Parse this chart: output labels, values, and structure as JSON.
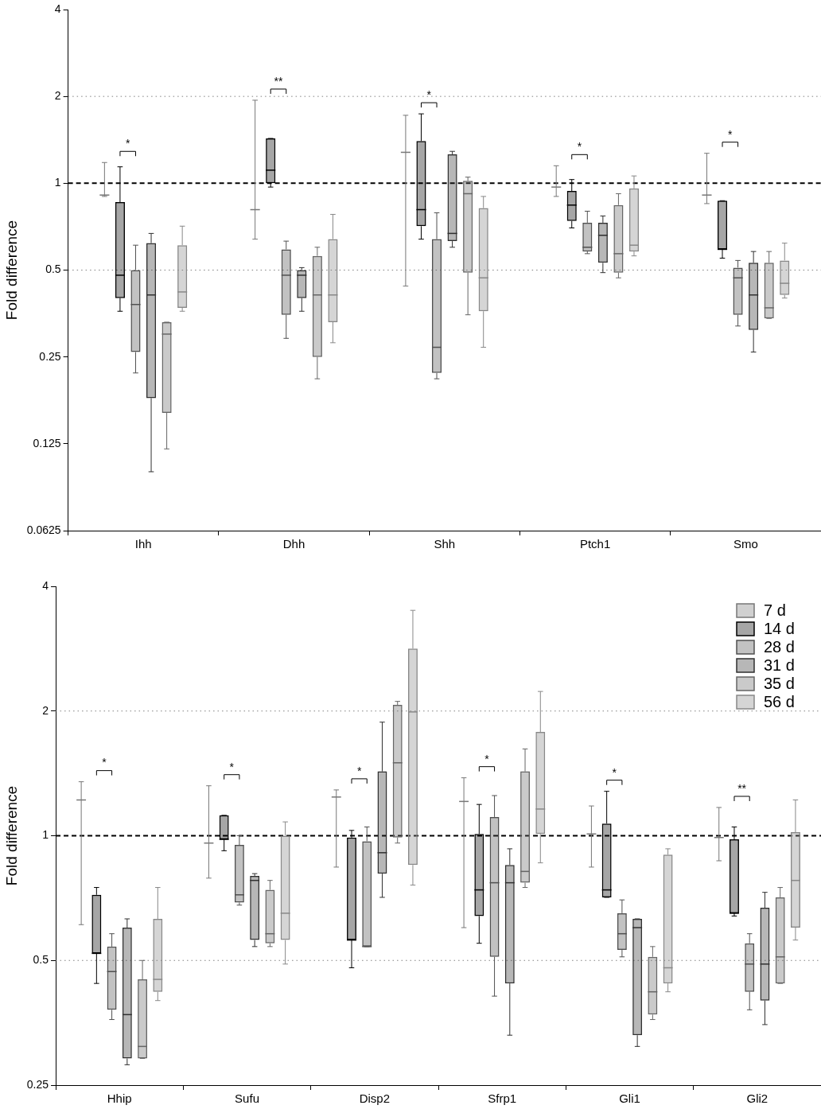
{
  "chart_data": [
    {
      "type": "box",
      "ylabel": "Fold difference",
      "categories": [
        "Ihh",
        "Dhh",
        "Shh",
        "Ptch1",
        "Smo"
      ],
      "log": "y",
      "ylim": [
        0.0625,
        4
      ],
      "yticks": [
        0.0625,
        0.125,
        0.25,
        0.5,
        1,
        2,
        4
      ],
      "ref_lines": [
        {
          "axis": "y",
          "value": 2,
          "line_style": "dotted",
          "color": "#808080"
        },
        {
          "axis": "y",
          "value": 1,
          "line_style": "dashed",
          "color": "#000000"
        },
        {
          "axis": "y",
          "value": 0.5,
          "line_style": "dotted",
          "color": "#808080"
        }
      ],
      "annotations": [
        "*",
        "**",
        "*",
        "*",
        "*"
      ],
      "series": [
        {
          "color": "#777777",
          "boxes": [
            {
              "low": 0.9,
              "q1": 0.91,
              "median": 0.91,
              "q3": 0.91,
              "high": 1.18
            },
            {
              "low": 0.64,
              "q1": 0.81,
              "median": 0.81,
              "q3": 0.81,
              "high": 1.94
            },
            {
              "low": 0.44,
              "q1": 1.28,
              "median": 1.28,
              "q3": 1.28,
              "high": 1.72
            },
            {
              "low": 0.9,
              "q1": 0.97,
              "median": 0.97,
              "q3": 0.97,
              "high": 1.15
            },
            {
              "low": 0.85,
              "q1": 0.91,
              "median": 0.91,
              "q3": 0.91,
              "high": 1.27
            }
          ]
        },
        {
          "color": "#000000",
          "boxes": [
            {
              "low": 0.36,
              "q1": 0.4,
              "median": 0.48,
              "q3": 0.86,
              "high": 1.14
            },
            {
              "low": 0.97,
              "q1": 1.0,
              "median": 1.11,
              "q3": 1.43,
              "high": 1.43
            },
            {
              "low": 0.64,
              "q1": 0.71,
              "median": 0.81,
              "q3": 1.4,
              "high": 1.74
            },
            {
              "low": 0.7,
              "q1": 0.74,
              "median": 0.84,
              "q3": 0.94,
              "high": 1.03
            },
            {
              "low": 0.55,
              "q1": 0.59,
              "median": 0.59,
              "q3": 0.87,
              "high": 0.87
            }
          ]
        },
        {
          "color": "#505050",
          "boxes": [
            {
              "low": 0.22,
              "q1": 0.26,
              "median": 0.38,
              "q3": 0.5,
              "high": 0.61
            },
            {
              "low": 0.29,
              "q1": 0.35,
              "median": 0.48,
              "q3": 0.59,
              "high": 0.63
            },
            {
              "low": 0.21,
              "q1": 0.22,
              "median": 0.27,
              "q3": 0.64,
              "high": 0.79
            },
            {
              "low": 0.57,
              "q1": 0.58,
              "median": 0.6,
              "q3": 0.73,
              "high": 0.8
            },
            {
              "low": 0.32,
              "q1": 0.35,
              "median": 0.47,
              "q3": 0.51,
              "high": 0.54
            }
          ]
        },
        {
          "color": "#303030",
          "boxes": [
            {
              "low": 0.1,
              "q1": 0.18,
              "median": 0.41,
              "q3": 0.62,
              "high": 0.67
            },
            {
              "low": 0.36,
              "q1": 0.4,
              "median": 0.48,
              "q3": 0.5,
              "high": 0.51
            },
            {
              "low": 0.6,
              "q1": 0.63,
              "median": 0.67,
              "q3": 1.26,
              "high": 1.29
            },
            {
              "low": 0.49,
              "q1": 0.53,
              "median": 0.66,
              "q3": 0.73,
              "high": 0.77
            },
            {
              "low": 0.26,
              "q1": 0.31,
              "median": 0.41,
              "q3": 0.53,
              "high": 0.58
            }
          ]
        },
        {
          "color": "#666666",
          "boxes": [
            {
              "low": 0.12,
              "q1": 0.16,
              "median": 0.3,
              "q3": 0.33,
              "high": 0.33
            },
            {
              "low": 0.21,
              "q1": 0.25,
              "median": 0.41,
              "q3": 0.56,
              "high": 0.6
            },
            {
              "low": 0.35,
              "q1": 0.49,
              "median": 0.92,
              "q3": 1.02,
              "high": 1.05
            },
            {
              "low": 0.47,
              "q1": 0.49,
              "median": 0.57,
              "q3": 0.84,
              "high": 0.92
            },
            {
              "low": 0.34,
              "q1": 0.34,
              "median": 0.37,
              "q3": 0.53,
              "high": 0.58
            }
          ]
        },
        {
          "color": "#888888",
          "boxes": [
            {
              "low": 0.36,
              "q1": 0.37,
              "median": 0.42,
              "q3": 0.61,
              "high": 0.71
            },
            {
              "low": 0.28,
              "q1": 0.33,
              "median": 0.41,
              "q3": 0.64,
              "high": 0.78
            },
            {
              "low": 0.27,
              "q1": 0.36,
              "median": 0.47,
              "q3": 0.82,
              "high": 0.9
            },
            {
              "low": 0.56,
              "q1": 0.58,
              "median": 0.61,
              "q3": 0.96,
              "high": 1.06
            },
            {
              "low": 0.4,
              "q1": 0.41,
              "median": 0.45,
              "q3": 0.54,
              "high": 0.62
            }
          ]
        }
      ]
    },
    {
      "type": "box",
      "ylabel": "Fold difference",
      "categories": [
        "Hhip",
        "Sufu",
        "Disp2",
        "Sfrp1",
        "Gli1",
        "Gli2"
      ],
      "log": "y",
      "ylim": [
        0.25,
        4
      ],
      "yticks": [
        0.25,
        0.5,
        1,
        2,
        4
      ],
      "legend": "top right",
      "ref_lines": [
        {
          "axis": "y",
          "value": 2,
          "line_style": "dotted",
          "color": "#808080"
        },
        {
          "axis": "y",
          "value": 1,
          "line_style": "dashed",
          "color": "#000000"
        },
        {
          "axis": "y",
          "value": 0.5,
          "line_style": "dotted",
          "color": "#808080"
        }
      ],
      "annotations": [
        "*",
        "*",
        "*",
        "*",
        "*",
        "**"
      ],
      "series": [
        {
          "name": "7 d",
          "color": "#777777",
          "boxes": [
            {
              "low": 0.61,
              "q1": 1.22,
              "median": 1.22,
              "q3": 1.22,
              "high": 1.35
            },
            {
              "low": 0.79,
              "q1": 0.96,
              "median": 0.96,
              "q3": 0.96,
              "high": 1.32
            },
            {
              "low": 0.84,
              "q1": 1.24,
              "median": 1.24,
              "q3": 1.24,
              "high": 1.29
            },
            {
              "low": 0.6,
              "q1": 1.21,
              "median": 1.21,
              "q3": 1.21,
              "high": 1.38
            },
            {
              "low": 0.84,
              "q1": 1.01,
              "median": 1.01,
              "q3": 1.01,
              "high": 1.18
            },
            {
              "low": 0.87,
              "q1": 0.99,
              "median": 0.99,
              "q3": 0.99,
              "high": 1.17
            }
          ]
        },
        {
          "name": "14 d",
          "color": "#000000",
          "boxes": [
            {
              "low": 0.44,
              "q1": 0.52,
              "median": 0.52,
              "q3": 0.72,
              "high": 0.75
            },
            {
              "low": 0.92,
              "q1": 0.98,
              "median": 0.98,
              "q3": 1.12,
              "high": 1.12
            },
            {
              "low": 0.48,
              "q1": 0.56,
              "median": 0.56,
              "q3": 0.99,
              "high": 1.03
            },
            {
              "low": 0.55,
              "q1": 0.64,
              "median": 0.74,
              "q3": 1.01,
              "high": 1.19
            },
            {
              "low": 0.71,
              "q1": 0.71,
              "median": 0.74,
              "q3": 1.07,
              "high": 1.28
            },
            {
              "low": 0.64,
              "q1": 0.65,
              "median": 0.65,
              "q3": 0.98,
              "high": 1.05
            }
          ]
        },
        {
          "name": "28 d",
          "color": "#505050",
          "boxes": [
            {
              "low": 0.36,
              "q1": 0.38,
              "median": 0.47,
              "q3": 0.54,
              "high": 0.58
            },
            {
              "low": 0.68,
              "q1": 0.69,
              "median": 0.72,
              "q3": 0.95,
              "high": 1.0
            },
            {
              "low": 0.54,
              "q1": 0.54,
              "median": 0.54,
              "q3": 0.97,
              "high": 1.05
            },
            {
              "low": 0.41,
              "q1": 0.51,
              "median": 0.77,
              "q3": 1.11,
              "high": 1.25
            },
            {
              "low": 0.51,
              "q1": 0.53,
              "median": 0.58,
              "q3": 0.65,
              "high": 0.7
            },
            {
              "low": 0.38,
              "q1": 0.42,
              "median": 0.49,
              "q3": 0.55,
              "high": 0.58
            }
          ]
        },
        {
          "name": "31 d",
          "color": "#303030",
          "boxes": [
            {
              "low": 0.28,
              "q1": 0.29,
              "median": 0.37,
              "q3": 0.6,
              "high": 0.63
            },
            {
              "low": 0.54,
              "q1": 0.56,
              "median": 0.78,
              "q3": 0.8,
              "high": 0.81
            },
            {
              "low": 0.71,
              "q1": 0.81,
              "median": 0.91,
              "q3": 1.43,
              "high": 1.88
            },
            {
              "low": 0.33,
              "q1": 0.44,
              "median": 0.77,
              "q3": 0.85,
              "high": 0.93
            },
            {
              "low": 0.31,
              "q1": 0.33,
              "median": 0.6,
              "q3": 0.63,
              "high": 0.63
            },
            {
              "low": 0.35,
              "q1": 0.4,
              "median": 0.49,
              "q3": 0.67,
              "high": 0.73
            }
          ]
        },
        {
          "name": "35 d",
          "color": "#666666",
          "boxes": [
            {
              "low": 0.29,
              "q1": 0.29,
              "median": 0.31,
              "q3": 0.45,
              "high": 0.5
            },
            {
              "low": 0.54,
              "q1": 0.55,
              "median": 0.58,
              "q3": 0.74,
              "high": 0.78
            },
            {
              "low": 0.96,
              "q1": 0.99,
              "median": 1.5,
              "q3": 2.07,
              "high": 2.11
            },
            {
              "low": 0.75,
              "q1": 0.77,
              "median": 0.82,
              "q3": 1.43,
              "high": 1.62
            },
            {
              "low": 0.36,
              "q1": 0.37,
              "median": 0.42,
              "q3": 0.51,
              "high": 0.54
            },
            {
              "low": 0.44,
              "q1": 0.44,
              "median": 0.51,
              "q3": 0.71,
              "high": 0.75
            }
          ]
        },
        {
          "name": "56 d",
          "color": "#888888",
          "boxes": [
            {
              "low": 0.4,
              "q1": 0.42,
              "median": 0.45,
              "q3": 0.63,
              "high": 0.75
            },
            {
              "low": 0.49,
              "q1": 0.56,
              "median": 0.65,
              "q3": 1.0,
              "high": 1.08
            },
            {
              "low": 0.76,
              "q1": 0.85,
              "median": 1.99,
              "q3": 2.83,
              "high": 3.5
            },
            {
              "low": 0.86,
              "q1": 1.01,
              "median": 1.16,
              "q3": 1.78,
              "high": 2.23
            },
            {
              "low": 0.42,
              "q1": 0.44,
              "median": 0.48,
              "q3": 0.9,
              "high": 0.93
            },
            {
              "low": 0.56,
              "q1": 0.6,
              "median": 0.78,
              "q3": 1.02,
              "high": 1.22
            }
          ]
        }
      ]
    }
  ]
}
